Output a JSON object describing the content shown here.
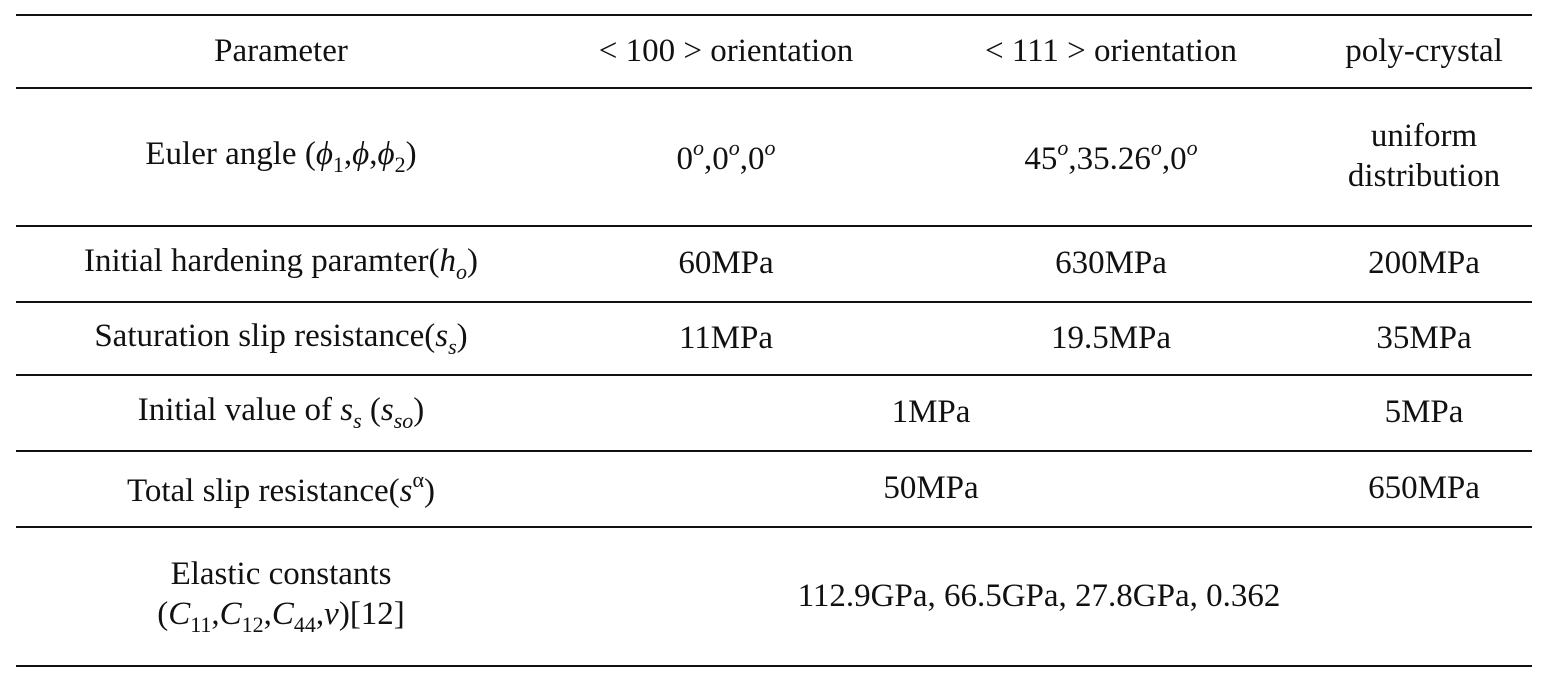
{
  "header": {
    "parameter": "Parameter",
    "orient_100": "< 100 > orientation",
    "orient_111": "< 111 > orientation",
    "poly": "poly-crystal"
  },
  "rows": {
    "euler": {
      "label_prefix": "Euler angle (",
      "phi": "ϕ",
      "sub1": "1",
      "sub2": "2",
      "comma": ",",
      "close": ")",
      "v100": [
        "0",
        "0",
        "0"
      ],
      "v111": [
        "45",
        "35.26",
        "0"
      ],
      "deg": "o",
      "poly_line1": "uniform",
      "poly_line2": "distribution"
    },
    "hardening": {
      "label_prefix": "Initial hardening paramter(",
      "sym": "h",
      "sub": "o",
      "close": ")",
      "v100": "60MPa",
      "v111": "630MPa",
      "poly": "200MPa"
    },
    "saturation": {
      "label_prefix": "Saturation slip resistance(",
      "sym": "s",
      "sub": "s",
      "close": ")",
      "v100": "11MPa",
      "v111": "19.5MPa",
      "poly": "35MPa"
    },
    "initial": {
      "label_prefix": "Initial value of ",
      "sym": "s",
      "sub": "s",
      "open2": " (",
      "sym2": "s",
      "sub2": "so",
      "close": ")",
      "merged": "1MPa",
      "poly": "5MPa"
    },
    "total": {
      "label_prefix": "Total slip resistance(",
      "sym": "s",
      "sup": "α",
      "close": ")",
      "merged": "50MPa",
      "poly": "650MPa"
    },
    "elastic": {
      "line1": "Elastic constants",
      "open": "(",
      "c": "C",
      "sub11": "11",
      "sub12": "12",
      "sub44": "44",
      "comma": ",",
      "nu": "ν",
      "close_ref": ")[12]",
      "merged": "112.9GPa, 66.5GPa, 27.8GPa, 0.362"
    }
  }
}
